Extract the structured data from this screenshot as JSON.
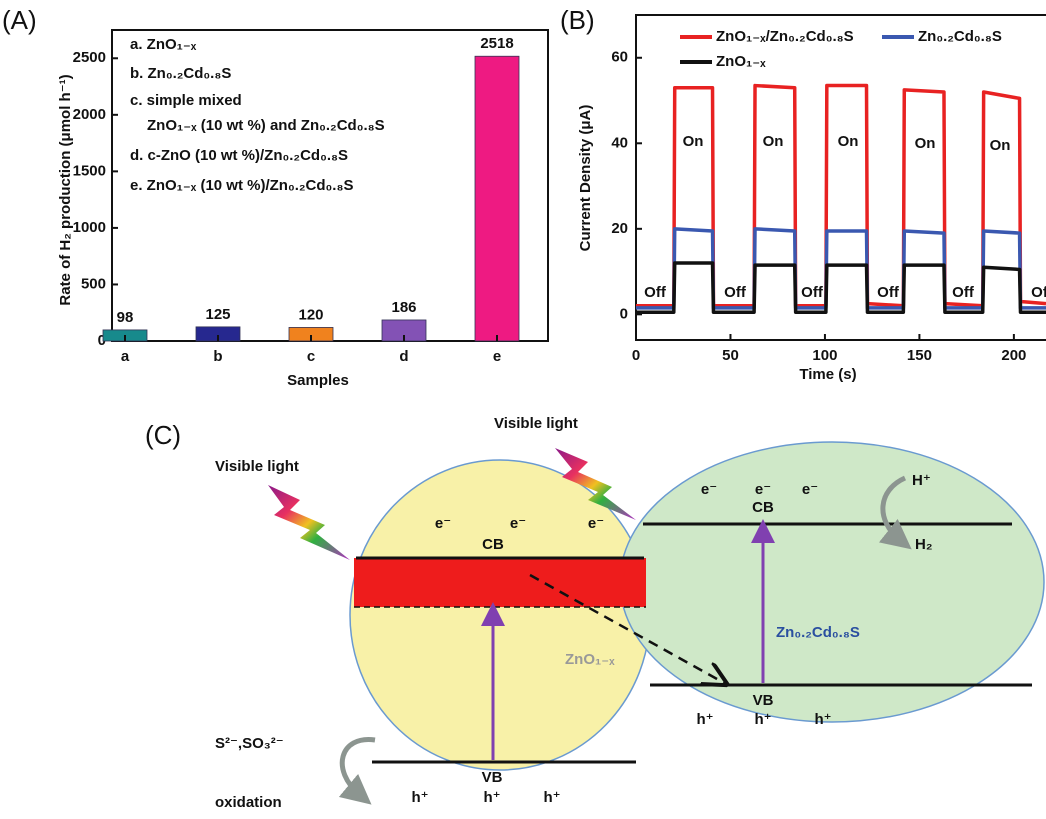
{
  "panel_labels": [
    "(A)",
    "(B)",
    "(C)"
  ],
  "chart_data": [
    {
      "type": "bar",
      "categories": [
        "a",
        "b",
        "c",
        "d",
        "e"
      ],
      "values": [
        98,
        125,
        120,
        186,
        2518
      ],
      "colors": [
        "#178a8c",
        "#26288f",
        "#f0821e",
        "#8352b5",
        "#ee1a82"
      ],
      "ylim": [
        0,
        2750
      ],
      "yticks": [
        0,
        500,
        1000,
        1500,
        2000,
        2500
      ],
      "grid": false,
      "y_label": "Rate of H₂ production (μmol h⁻¹)",
      "x_label": "Samples",
      "annotations": [
        "a. ZnO₁₋ₓ",
        "b. Zn₀.₂Cd₀.₈S",
        "c. simple mixed",
        "ZnO₁₋ₓ (10 wt %) and Zn₀.₂Cd₀.₈S",
        "d. c-ZnO (10 wt %)/Zn₀.₂Cd₀.₈S",
        "e. ZnO₁₋ₓ (10 wt %)/Zn₀.₂Cd₀.₈S"
      ]
    },
    {
      "type": "line",
      "x": [
        0,
        20,
        20.5,
        40.5,
        41,
        62.5,
        63,
        84,
        84.5,
        100.5,
        101,
        122,
        122.5,
        141.5,
        142,
        163,
        163.5,
        183.5,
        184,
        203,
        203.5,
        217
      ],
      "series": [
        {
          "name": "ZnO₁₋ₓ/Zn₀.₂Cd₀.₈S",
          "color": "#e82222",
          "values": [
            2,
            2,
            53,
            53,
            2,
            2,
            53.5,
            53,
            2,
            2,
            53.5,
            53.5,
            2.5,
            2,
            52.5,
            52,
            2.5,
            2,
            52,
            50.5,
            3,
            2.5
          ]
        },
        {
          "name": "Zn₀.₂Cd₀.₈S",
          "color": "#3a58b0",
          "values": [
            1.5,
            1.5,
            20,
            19.5,
            1.5,
            1.5,
            20,
            19.5,
            1.5,
            1.5,
            19.5,
            19.5,
            1.5,
            1.5,
            19.5,
            19,
            1.5,
            1.5,
            19.5,
            19,
            1.5,
            1.5
          ]
        },
        {
          "name": "ZnO₁₋ₓ",
          "color": "#111111",
          "values": [
            0.5,
            0.5,
            12,
            12,
            0.5,
            0.5,
            11.5,
            11.5,
            0.5,
            0.5,
            11.5,
            11.5,
            0.5,
            0.5,
            11.5,
            11.5,
            0.5,
            0.5,
            11,
            10.5,
            0.5,
            0.5
          ]
        }
      ],
      "xlim": [
        0,
        217
      ],
      "xticks": [
        0,
        50,
        100,
        150,
        200
      ],
      "ylim": [
        -6,
        70
      ],
      "yticks": [
        0,
        20,
        40,
        60
      ],
      "grid": false,
      "x_label": "Time (s)",
      "y_label": "Current Density (μA)",
      "annotations": [
        "On",
        "On",
        "On",
        "On",
        "On",
        "Off",
        "Off",
        "Off",
        "Off",
        "Off",
        "Off"
      ]
    }
  ],
  "diagram": {
    "light_labels": [
      "Visible light",
      "Visible light"
    ],
    "left": {
      "electrons": [
        "e⁻",
        "e⁻",
        "e⁻"
      ],
      "cb": "CB",
      "vb": "VB",
      "holes": [
        "h⁺",
        "h⁺",
        "h⁺"
      ],
      "label": "ZnO₁₋ₓ"
    },
    "right": {
      "electrons": [
        "e⁻",
        "e⁻",
        "e⁻"
      ],
      "cb": "CB",
      "vb": "VB",
      "holes": [
        "h⁺",
        "h⁺",
        "h⁺"
      ],
      "label": "Zn₀.₂Cd₀.₈S"
    },
    "proton": "H⁺",
    "hydrogen": "H₂",
    "sacrificial": "S²⁻,SO₃²⁻",
    "oxidation": "oxidation"
  }
}
